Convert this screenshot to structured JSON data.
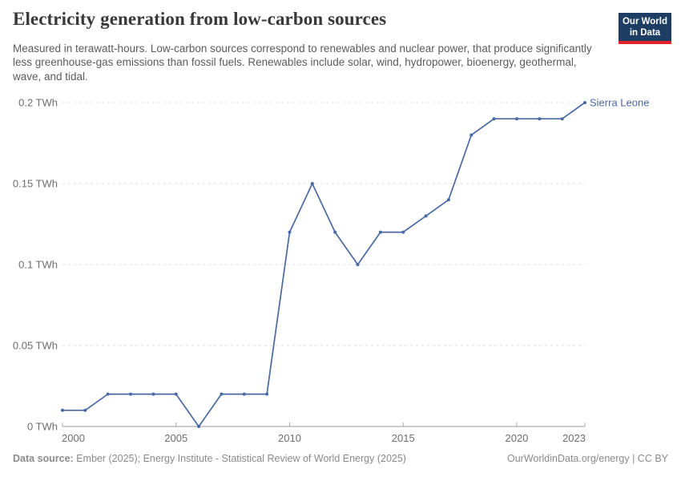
{
  "header": {
    "title": "Electricity generation from low-carbon sources",
    "subtitle": "Measured in terawatt-hours. Low-carbon sources correspond to renewables and nuclear power, that produce significantly less greenhouse-gas emissions than fossil fuels. Renewables include solar, wind, hydropower, bioenergy, geothermal, wave, and tidal.",
    "logo": {
      "line1": "Our World",
      "line2": "in Data",
      "bg_color": "#1d3d63",
      "bar_color": "#e0232a"
    }
  },
  "chart_data": {
    "type": "line",
    "title": "Electricity generation from low-carbon sources",
    "ylabel": "",
    "xlabel": "",
    "unit": "TWh",
    "grid": "horizontal-dashed",
    "legend_position": "end-of-line-label",
    "xlim": [
      2000,
      2023
    ],
    "ylim": [
      0,
      0.2
    ],
    "x": [
      2000,
      2001,
      2002,
      2003,
      2004,
      2005,
      2006,
      2007,
      2008,
      2009,
      2010,
      2011,
      2012,
      2013,
      2014,
      2015,
      2016,
      2017,
      2018,
      2019,
      2020,
      2021,
      2022,
      2023
    ],
    "series": [
      {
        "name": "Sierra Leone",
        "color": "#4a69a2",
        "values": [
          0.01,
          0.01,
          0.02,
          0.02,
          0.02,
          0.02,
          0,
          0.02,
          0.02,
          0.02,
          0.12,
          0.15,
          0.12,
          0.1,
          0.12,
          0.12,
          0.13,
          0.14,
          0.18,
          0.19,
          0.19,
          0.19,
          0.19,
          0.2
        ]
      }
    ],
    "yticks": [
      {
        "value": 0,
        "label": "0 TWh"
      },
      {
        "value": 0.05,
        "label": "0.05 TWh"
      },
      {
        "value": 0.1,
        "label": "0.1 TWh"
      },
      {
        "value": 0.15,
        "label": "0.15 TWh"
      },
      {
        "value": 0.2,
        "label": "0.2 TWh"
      }
    ],
    "xticks": [
      {
        "year": 2000,
        "label": "2000",
        "align": "start"
      },
      {
        "year": 2005,
        "label": "2005",
        "align": "middle"
      },
      {
        "year": 2010,
        "label": "2010",
        "align": "middle"
      },
      {
        "year": 2015,
        "label": "2015",
        "align": "middle"
      },
      {
        "year": 2020,
        "label": "2020",
        "align": "middle"
      },
      {
        "year": 2023,
        "label": "2023",
        "align": "end"
      }
    ],
    "colors": {
      "gridline": "#dcdcdc",
      "axis": "#9a9a9a",
      "tick": "#a8a8a8",
      "tick_text": "#6e6e6e"
    }
  },
  "footer": {
    "datasource_label": "Data source:",
    "datasource_text": "Ember (2025); Energy Institute - Statistical Review of World Energy (2025)",
    "right_text": "OurWorldinData.org/energy | CC BY"
  }
}
